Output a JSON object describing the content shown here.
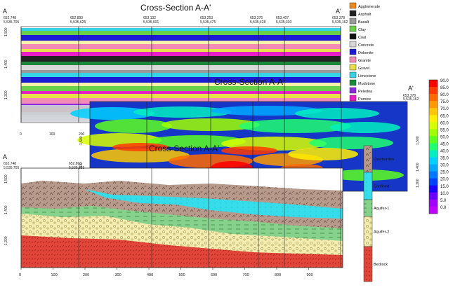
{
  "panels": {
    "lithology": {
      "title": "Cross-Section A-A'",
      "end_left": "A",
      "end_right": "A'",
      "wells": [
        {
          "e": "652,748",
          "n": "5,535,705"
        },
        {
          "e": "652,893",
          "n": "5,535,625"
        },
        {
          "e": "653,132",
          "n": "5,535,601"
        },
        {
          "e": "653,253",
          "n": "5,535,475"
        },
        {
          "e": "653,376",
          "n": "5,535,428"
        },
        {
          "e": "653,407",
          "n": "5,535,330"
        },
        {
          "e": "653,378",
          "n": "5,535,162"
        }
      ],
      "elev_ticks": [
        "1,500",
        "1,400",
        "1,300"
      ],
      "dist_ticks": [
        "0",
        "100",
        "200"
      ]
    },
    "resistivity": {
      "title": "Cross-Section A-A'",
      "end_right": "A'",
      "right_well": {
        "e": "653,378",
        "n": "5,535,162"
      },
      "elev_ticks": [
        "1,500",
        "1,400",
        "1,300"
      ]
    },
    "stratigraphy": {
      "title": "Cross-Section A-A'",
      "end_left": "A",
      "wells": [
        {
          "e": "652,748",
          "n": "5,535,705"
        },
        {
          "e": "652,893",
          "n": "5,535,625"
        }
      ],
      "elev_ticks": [
        "1,500",
        "1,400",
        "1,300"
      ],
      "dist_ticks": [
        "0",
        "100",
        "200",
        "300",
        "400",
        "500",
        "600",
        "700",
        "800",
        "900"
      ]
    }
  },
  "lithology_legend": [
    {
      "label": "Agglomerate",
      "color": "#f08a1e"
    },
    {
      "label": "Asphalt",
      "color": "#222222"
    },
    {
      "label": "Basalt",
      "color": "#9a9a9a"
    },
    {
      "label": "Clay",
      "color": "#6ad04a"
    },
    {
      "label": "Coal",
      "color": "#111111"
    },
    {
      "label": "Concrete",
      "color": "#d9d9d9"
    },
    {
      "label": "Dolomite",
      "color": "#1b1bd6"
    },
    {
      "label": "Granite",
      "color": "#f28bb5"
    },
    {
      "label": "Gravel",
      "color": "#e8e04a"
    },
    {
      "label": "Limestone",
      "color": "#36d2e6"
    },
    {
      "label": "Mudstone",
      "color": "#1a8a3a"
    },
    {
      "label": "Peledoa",
      "color": "#8a2be2"
    },
    {
      "label": "Pumice",
      "color": "#e61ec8"
    },
    {
      "label": "Sand",
      "color": "#f6f2a8"
    },
    {
      "label": "Scoria",
      "color": "#b22a2a"
    }
  ],
  "strat_units": [
    {
      "label": "Overburden",
      "color": "#b79a8c"
    },
    {
      "label": "Confined",
      "color": "#35dcea"
    },
    {
      "label": "Aquifer-1",
      "color": "#86d18c"
    },
    {
      "label": "Aquifer-2",
      "color": "#f3ecb0"
    },
    {
      "label": "Bedrock",
      "color": "#e2463a"
    }
  ],
  "color_scale": {
    "labels": [
      "90.0",
      "85.0",
      "80.0",
      "75.0",
      "70.0",
      "65.0",
      "60.0",
      "55.0",
      "50.0",
      "45.0",
      "40.0",
      "35.0",
      "30.0",
      "25.0",
      "20.0",
      "15.0",
      "10.0",
      "5.0",
      "0.0"
    ],
    "colors": [
      "#ff0000",
      "#ff3a00",
      "#ff6a00",
      "#ff9a00",
      "#ffc800",
      "#fff000",
      "#d8ff00",
      "#a0ff00",
      "#5cff20",
      "#20ff70",
      "#00f0c0",
      "#00d0ff",
      "#00a8ff",
      "#0078ff",
      "#0040ff",
      "#1a00ff",
      "#6a00ff",
      "#a000ff",
      "#c000ff"
    ]
  }
}
